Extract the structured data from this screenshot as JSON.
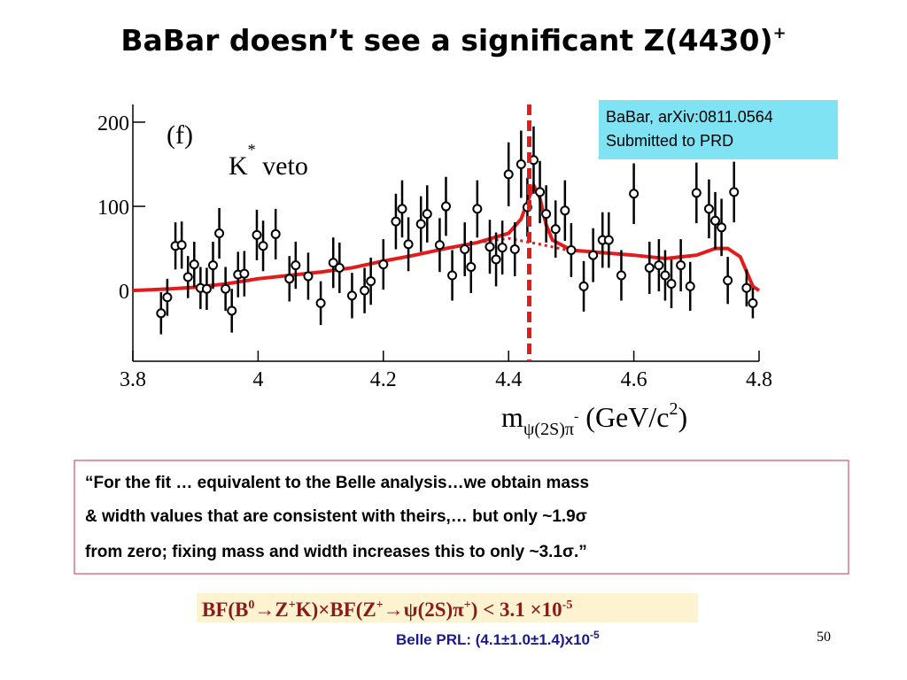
{
  "slide": {
    "title": [
      "BaBar doesn’t see a significant Z(4430)",
      "+"
    ],
    "reference": [
      "BaBar, arXiv:0811.0564",
      "Submitted to PRD"
    ],
    "quote": [
      "“For the fit … equivalent to the Belle analysis…we obtain mass",
      "& width values that are consistent with theirs,… but only ~1.9σ",
      "from zero; fixing mass and width increases this to only ~3.1σ.”"
    ],
    "formula": [
      "BF(B",
      "0",
      "→Z",
      "+",
      "K)×BF(Z",
      "+",
      "→ψ(2S)π",
      "+",
      ") < 3.1 ×10",
      "-5"
    ],
    "belle": [
      "Belle PRL:  (4.1±1.0±1.4)x10",
      "-5"
    ],
    "page_number": "50"
  },
  "chart_data": {
    "type": "errorbar",
    "panel_label": "(f)",
    "annotation": [
      "K",
      "*",
      " veto"
    ],
    "x_label": [
      "m",
      "ψ(2S)π",
      "-",
      " (GeV/c",
      "2",
      ")"
    ],
    "xlim": [
      3.8,
      4.8
    ],
    "xticks": [
      3.8,
      4,
      4.2,
      4.4,
      4.6,
      4.8
    ],
    "ylim": [
      -84,
      221
    ],
    "yticks": [
      0,
      100,
      200
    ],
    "x": [
      3.845,
      3.855,
      3.868,
      3.878,
      3.888,
      3.898,
      3.908,
      3.918,
      3.928,
      3.938,
      3.948,
      3.958,
      3.968,
      3.978,
      3.998,
      4.008,
      4.028,
      4.05,
      4.06,
      4.08,
      4.1,
      4.12,
      4.13,
      4.15,
      4.17,
      4.18,
      4.2,
      4.22,
      4.23,
      4.24,
      4.26,
      4.27,
      4.29,
      4.3,
      4.31,
      4.33,
      4.34,
      4.35,
      4.37,
      4.38,
      4.39,
      4.4,
      4.41,
      4.42,
      4.43,
      4.44,
      4.45,
      4.46,
      4.475,
      4.49,
      4.5,
      4.52,
      4.535,
      4.55,
      4.56,
      4.58,
      4.6,
      4.625,
      4.64,
      4.65,
      4.66,
      4.675,
      4.69,
      4.7,
      4.72,
      4.73,
      4.74,
      4.75,
      4.76,
      4.78,
      4.79
    ],
    "values": [
      -27,
      -8,
      53,
      54,
      16,
      31,
      3,
      2,
      30,
      68,
      2,
      -24,
      19,
      20,
      66,
      53,
      67,
      14,
      30,
      17,
      -15,
      33,
      27,
      -6,
      0,
      11,
      31,
      82,
      97,
      55,
      79,
      91,
      54,
      100,
      18,
      49,
      28,
      97,
      52,
      37,
      51,
      138,
      49,
      150,
      99,
      155,
      117,
      91,
      73,
      95,
      48,
      5,
      42,
      60,
      60,
      18,
      115,
      27,
      30,
      18,
      8,
      30,
      5,
      116,
      97,
      83,
      75,
      12,
      117,
      3,
      -15
    ],
    "errors": [
      25,
      22,
      28,
      28,
      25,
      27,
      25,
      25,
      28,
      30,
      26,
      26,
      27,
      27,
      30,
      30,
      30,
      27,
      28,
      28,
      26,
      30,
      30,
      27,
      27,
      28,
      30,
      33,
      34,
      32,
      33,
      34,
      32,
      35,
      30,
      32,
      31,
      34,
      32,
      32,
      32,
      38,
      32,
      40,
      35,
      40,
      37,
      34,
      34,
      36,
      32,
      30,
      32,
      33,
      33,
      30,
      36,
      31,
      31,
      30,
      29,
      31,
      29,
      36,
      35,
      34,
      34,
      28,
      36,
      22,
      18
    ],
    "color": "#000000",
    "fit": {
      "color": "#e31b1b",
      "x": [
        3.8,
        3.86,
        3.9,
        3.95,
        4.0,
        4.05,
        4.1,
        4.15,
        4.2,
        4.25,
        4.3,
        4.35,
        4.4,
        4.42,
        4.43,
        4.44,
        4.45,
        4.46,
        4.47,
        4.5,
        4.55,
        4.6,
        4.65,
        4.7,
        4.73,
        4.75,
        4.77,
        4.79,
        4.8
      ],
      "values": [
        0,
        2,
        4,
        8,
        14,
        18,
        22,
        27,
        35,
        42,
        50,
        57,
        68,
        85,
        105,
        125,
        110,
        78,
        60,
        48,
        45,
        42,
        38,
        42,
        50,
        50,
        40,
        5,
        0
      ]
    },
    "background": {
      "color": "#e31b1b",
      "x": [
        4.35,
        4.4,
        4.45,
        4.5
      ],
      "values": [
        57,
        62,
        55,
        47
      ]
    },
    "marker_x": 4.433,
    "marker_color": "#e31b1b"
  }
}
